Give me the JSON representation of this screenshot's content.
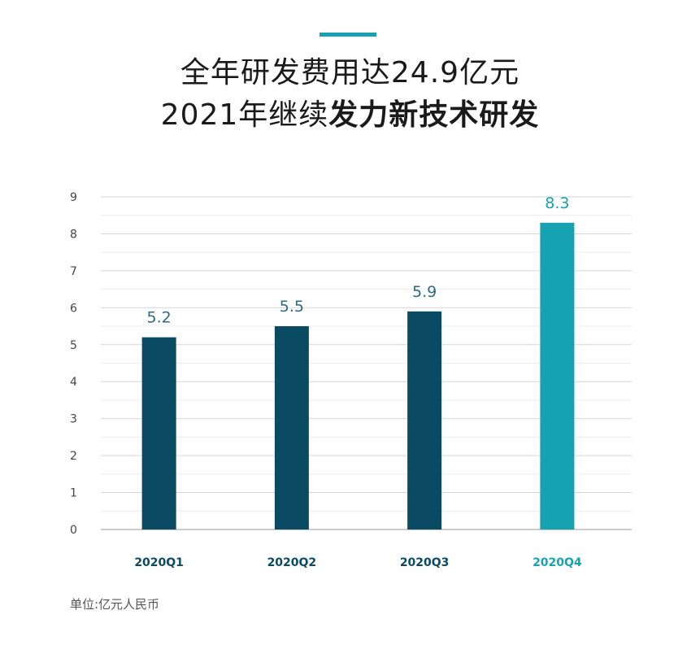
{
  "header": {
    "title_line1": "全年研发费用达24.9亿元",
    "title_line2_plain": "2021年继续",
    "title_line2_bold": "发力新技术研发"
  },
  "colors": {
    "accent": "#16a2b1",
    "bar_dark": "#0b4a63",
    "bar_highlight": "#16a2b1",
    "label_dark": "#2d6a85",
    "grid": "#d6d6d6",
    "axis_text": "#444444"
  },
  "chart_data": {
    "type": "bar",
    "categories": [
      "2020Q1",
      "2020Q2",
      "2020Q3",
      "2020Q4"
    ],
    "values": [
      5.2,
      5.5,
      5.9,
      8.3
    ],
    "value_labels": [
      "5.2",
      "5.5",
      "5.9",
      "8.3"
    ],
    "highlight_index": 3,
    "ylim": [
      0,
      9
    ],
    "yticks": [
      0,
      1,
      2,
      3,
      4,
      5,
      6,
      7,
      8,
      9
    ],
    "grid": true,
    "minor_grid": true,
    "title": "",
    "xlabel": "",
    "ylabel": ""
  },
  "footer": {
    "unit_label": "单位:亿元人民币"
  }
}
